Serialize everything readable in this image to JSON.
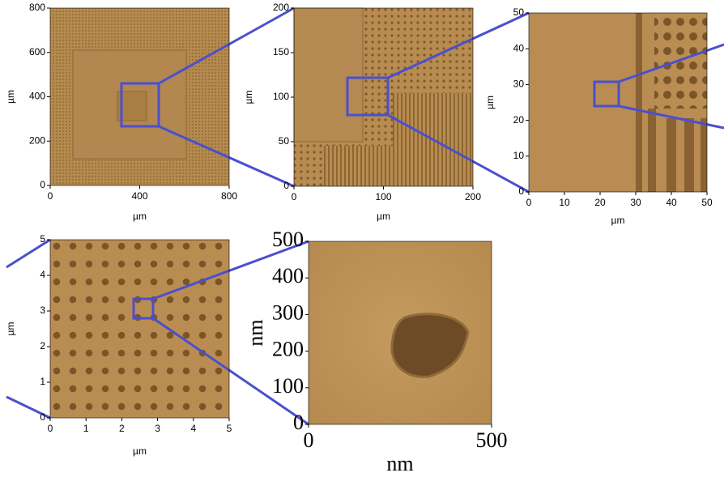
{
  "panels": [
    {
      "xlabel": "µm",
      "ylabel": "µm",
      "xticks": [
        0,
        400,
        800
      ],
      "yticks": [
        0,
        200,
        400,
        600,
        800
      ]
    },
    {
      "xlabel": "µm",
      "ylabel": "µm",
      "xticks": [
        0,
        100,
        200
      ],
      "yticks": [
        0,
        50,
        100,
        150,
        200
      ]
    },
    {
      "xlabel": "µm",
      "ylabel": "µm",
      "xticks": [
        0,
        10,
        20,
        30,
        40,
        50
      ],
      "yticks": [
        0,
        10,
        20,
        30,
        40,
        50
      ]
    },
    {
      "xlabel": "µm",
      "ylabel": "µm",
      "xticks": [
        0,
        1,
        2,
        3,
        4,
        5
      ],
      "yticks": [
        0,
        1,
        2,
        3,
        4,
        5
      ]
    },
    {
      "xlabel": "nm",
      "ylabel": "nm",
      "xticks": [
        0,
        500
      ],
      "yticks": [
        0,
        100,
        200,
        300,
        400,
        500
      ]
    }
  ]
}
